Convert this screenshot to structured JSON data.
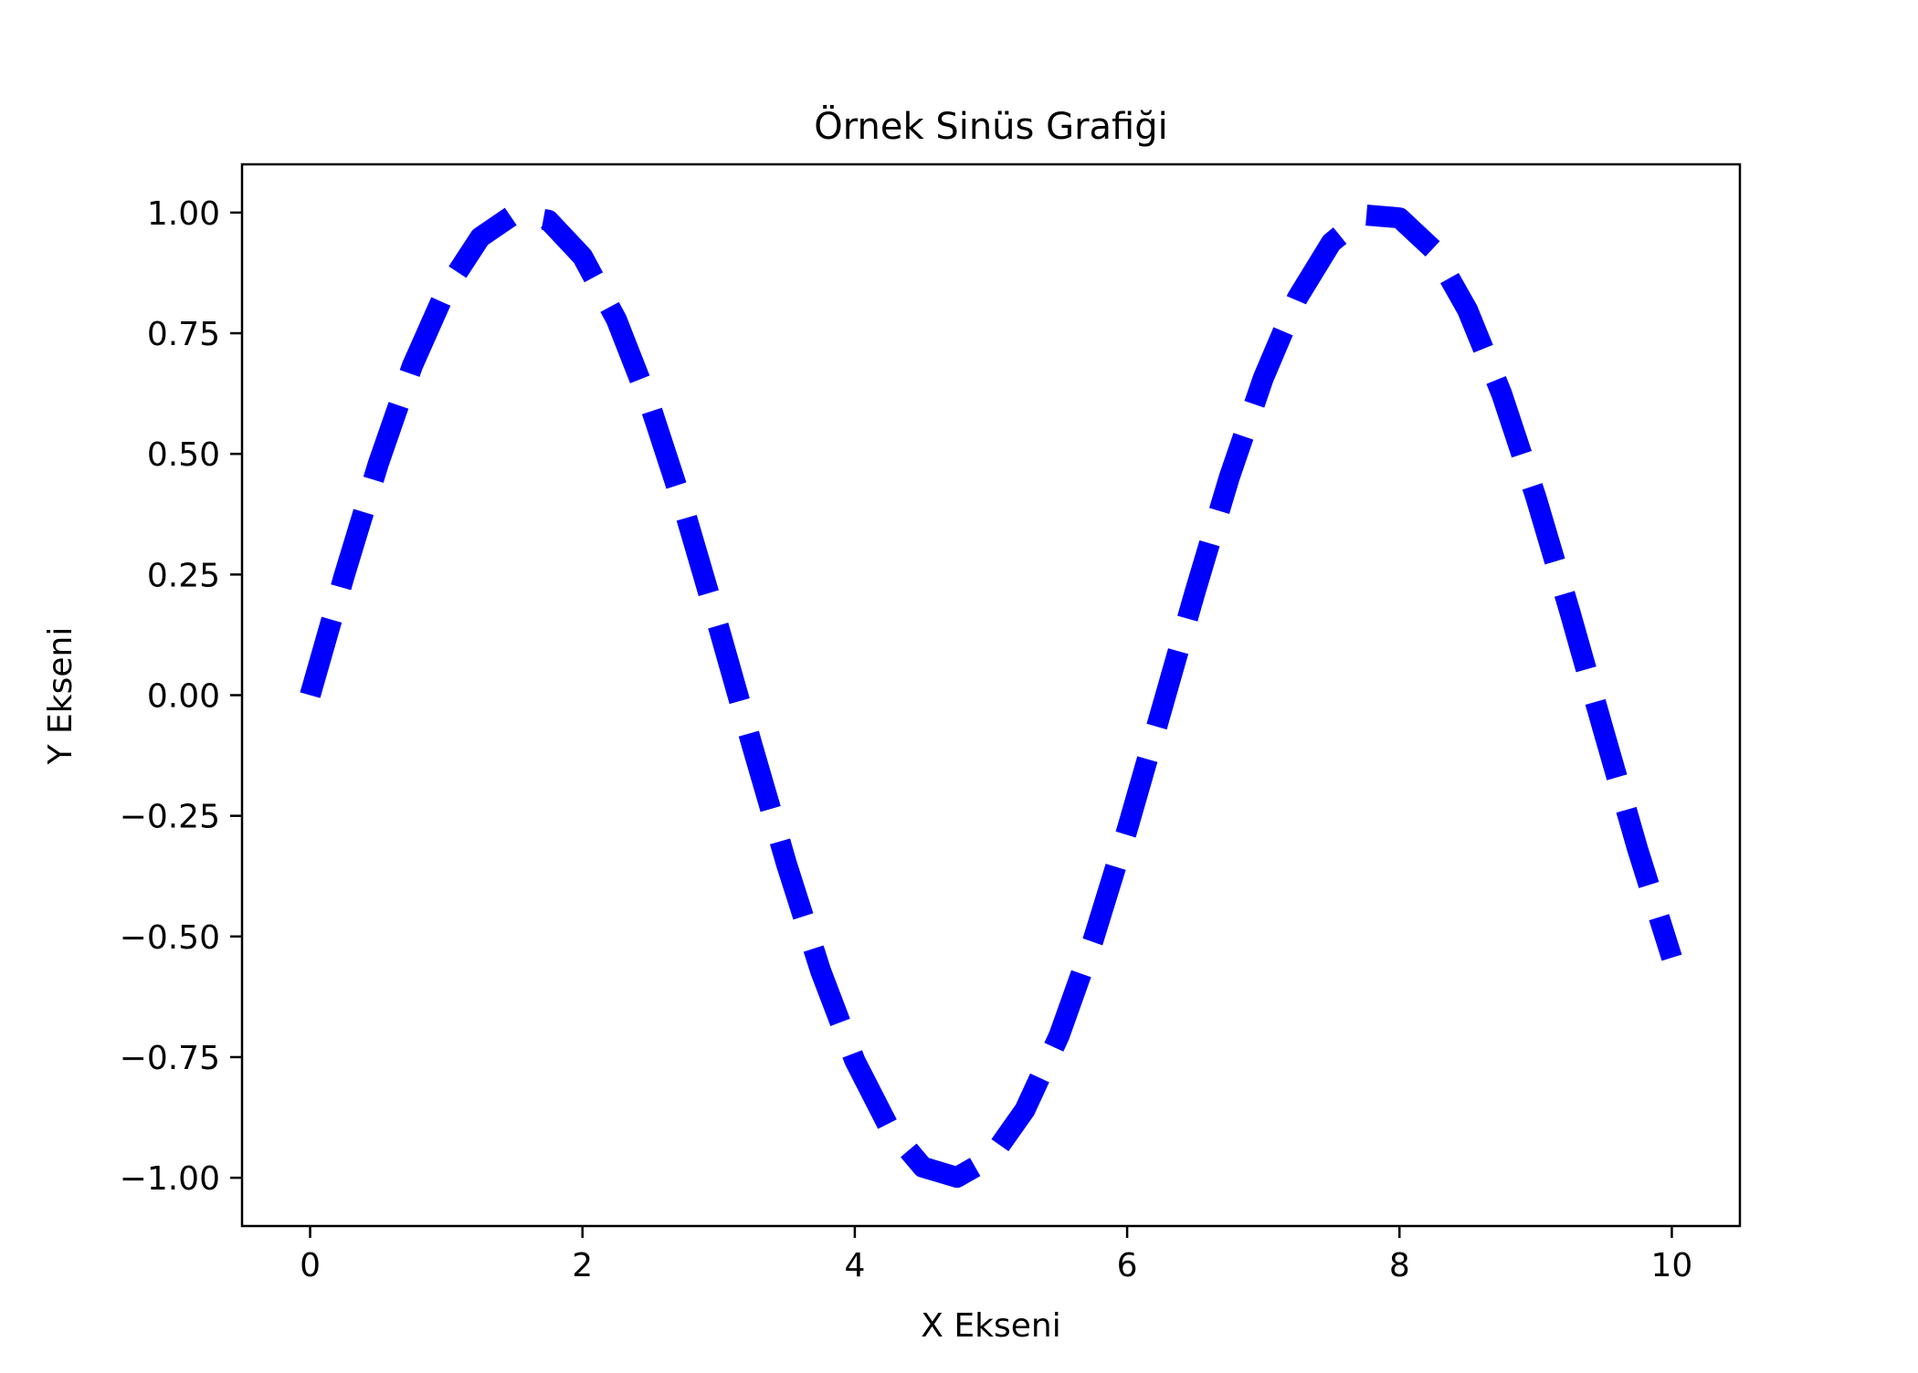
{
  "chart_data": {
    "type": "line",
    "title": "Örnek Sinüs Grafiği",
    "xlabel": "X Ekseni",
    "ylabel": "Y Ekseni",
    "xlim": [
      -0.5,
      10.5
    ],
    "ylim": [
      -1.1,
      1.1
    ],
    "x_ticks": [
      0,
      2,
      4,
      6,
      8,
      10
    ],
    "x_tick_labels": [
      "0",
      "2",
      "4",
      "6",
      "8",
      "10"
    ],
    "y_ticks": [
      1.0,
      0.75,
      0.5,
      0.25,
      0.0,
      -0.25,
      -0.5,
      -0.75,
      -1.0
    ],
    "y_tick_labels": [
      "1.00",
      "0.75",
      "0.50",
      "0.25",
      "0.00",
      "−0.25",
      "−0.50",
      "−0.75",
      "−1.00"
    ],
    "grid": false,
    "series": [
      {
        "color": "#0000ff",
        "line_style": "dashed",
        "x": [
          0.0,
          0.25,
          0.5,
          0.75,
          1.0,
          1.25,
          1.5,
          1.75,
          2.0,
          2.25,
          2.5,
          2.75,
          3.0,
          3.25,
          3.5,
          3.75,
          4.0,
          4.25,
          4.5,
          4.75,
          5.0,
          5.25,
          5.5,
          5.75,
          6.0,
          6.25,
          6.5,
          6.75,
          7.0,
          7.25,
          7.5,
          7.75,
          8.0,
          8.25,
          8.5,
          8.75,
          9.0,
          9.25,
          9.5,
          9.75,
          10.0
        ],
        "y": [
          0.0,
          0.247,
          0.479,
          0.682,
          0.841,
          0.949,
          0.997,
          0.984,
          0.909,
          0.778,
          0.598,
          0.382,
          0.141,
          -0.108,
          -0.351,
          -0.572,
          -0.757,
          -0.895,
          -0.978,
          -0.999,
          -0.959,
          -0.859,
          -0.706,
          -0.508,
          -0.279,
          -0.033,
          0.215,
          0.451,
          0.657,
          0.823,
          0.938,
          0.995,
          0.989,
          0.923,
          0.798,
          0.625,
          0.412,
          0.174,
          -0.075,
          -0.32,
          -0.544
        ]
      }
    ]
  }
}
